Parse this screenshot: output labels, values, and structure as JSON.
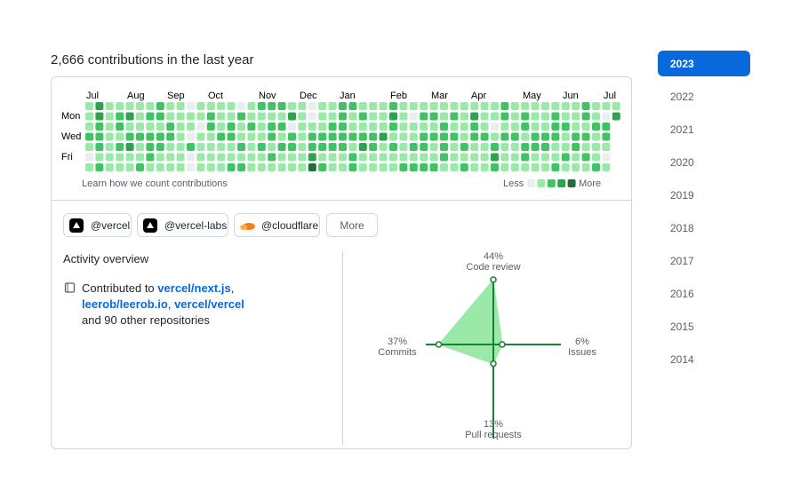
{
  "header": {
    "title": "2,666 contributions in the last year"
  },
  "calendar": {
    "months": [
      "Jul",
      "Aug",
      "Sep",
      "Oct",
      "Nov",
      "Dec",
      "Jan",
      "Feb",
      "Mar",
      "Apr",
      "May",
      "Jun",
      "Jul"
    ],
    "days": [
      "Mon",
      "Wed",
      "Fri"
    ],
    "levels": [
      [
        1,
        3,
        1,
        1,
        1,
        1,
        1,
        2,
        1,
        1,
        0,
        1,
        1,
        1,
        1,
        0,
        1,
        2,
        2,
        2,
        1,
        1,
        0,
        1,
        1,
        2,
        2,
        1,
        1,
        1,
        2,
        1,
        1,
        1,
        1,
        1,
        1,
        1,
        1,
        1,
        1,
        2,
        1,
        1,
        1,
        1,
        1,
        1,
        1,
        2,
        1,
        1,
        1
      ],
      [
        1,
        3,
        1,
        2,
        3,
        1,
        2,
        2,
        1,
        1,
        1,
        1,
        2,
        1,
        1,
        2,
        1,
        1,
        1,
        1,
        3,
        1,
        0,
        1,
        1,
        2,
        1,
        2,
        1,
        1,
        3,
        1,
        0,
        2,
        2,
        1,
        2,
        1,
        3,
        1,
        1,
        2,
        1,
        2,
        1,
        1,
        2,
        1,
        1,
        2,
        1,
        0,
        3
      ],
      [
        1,
        2,
        1,
        2,
        1,
        1,
        1,
        1,
        2,
        1,
        1,
        0,
        2,
        1,
        2,
        1,
        2,
        1,
        2,
        2,
        0,
        1,
        1,
        1,
        2,
        2,
        1,
        1,
        1,
        1,
        2,
        1,
        1,
        1,
        1,
        2,
        1,
        1,
        2,
        1,
        0,
        1,
        1,
        2,
        1,
        1,
        2,
        2,
        1,
        1,
        2,
        2,
        null
      ],
      [
        2,
        2,
        1,
        1,
        2,
        2,
        2,
        2,
        2,
        1,
        0,
        1,
        1,
        2,
        2,
        1,
        1,
        1,
        2,
        1,
        2,
        1,
        2,
        2,
        2,
        2,
        2,
        2,
        2,
        3,
        1,
        1,
        1,
        2,
        2,
        2,
        2,
        1,
        2,
        2,
        1,
        2,
        2,
        1,
        2,
        2,
        2,
        1,
        2,
        2,
        1,
        2,
        null
      ],
      [
        1,
        2,
        1,
        2,
        3,
        1,
        2,
        2,
        1,
        1,
        2,
        1,
        1,
        1,
        1,
        2,
        1,
        2,
        1,
        2,
        2,
        1,
        2,
        2,
        2,
        2,
        1,
        3,
        2,
        1,
        2,
        1,
        2,
        2,
        1,
        2,
        1,
        2,
        1,
        1,
        2,
        1,
        1,
        2,
        2,
        2,
        1,
        1,
        2,
        1,
        1,
        1,
        null
      ],
      [
        0,
        1,
        1,
        1,
        1,
        1,
        2,
        1,
        1,
        1,
        0,
        1,
        1,
        1,
        1,
        1,
        1,
        1,
        2,
        1,
        1,
        1,
        3,
        1,
        1,
        1,
        2,
        1,
        1,
        1,
        1,
        1,
        1,
        1,
        1,
        2,
        1,
        1,
        1,
        1,
        3,
        1,
        1,
        2,
        1,
        1,
        1,
        2,
        1,
        2,
        1,
        0,
        null
      ],
      [
        1,
        2,
        1,
        1,
        1,
        2,
        1,
        1,
        1,
        1,
        0,
        1,
        1,
        1,
        2,
        2,
        1,
        1,
        1,
        1,
        1,
        1,
        4,
        2,
        1,
        1,
        2,
        1,
        1,
        1,
        1,
        2,
        2,
        2,
        2,
        1,
        1,
        2,
        1,
        1,
        2,
        1,
        1,
        1,
        1,
        1,
        2,
        1,
        1,
        1,
        2,
        1,
        null
      ]
    ],
    "level_colors": [
      "#ebedf0",
      "#9be9a8",
      "#40c463",
      "#30a14e",
      "#216e39"
    ],
    "learn": "Learn how we count contributions",
    "less": "Less",
    "more": "More"
  },
  "orgs": [
    "@vercel",
    "@vercel-labs",
    "@cloudflare"
  ],
  "more_button": "More",
  "activity": {
    "title": "Activity overview",
    "intro": "Contributed to",
    "repos": [
      "vercel/next.js",
      "leerob/leerob.io",
      "vercel/vercel"
    ],
    "separators": [
      ",",
      ","
    ],
    "outro": "and 90 other repositories"
  },
  "radar": {
    "color": "#1a7f37",
    "fill": "#9be9a8",
    "axes": [
      {
        "name": "Code review",
        "percent": {
          "value": 44,
          "label": "44%"
        }
      },
      {
        "name": "Issues",
        "percent": {
          "value": 6,
          "label": "6%"
        }
      },
      {
        "name": "Pull requests",
        "percent": {
          "value": 13,
          "label": "13%"
        }
      },
      {
        "name": "Commits",
        "percent": {
          "value": 37,
          "label": "37%"
        }
      }
    ]
  },
  "years": [
    "2023",
    "2022",
    "2021",
    "2020",
    "2019",
    "2018",
    "2017",
    "2016",
    "2015",
    "2014"
  ]
}
